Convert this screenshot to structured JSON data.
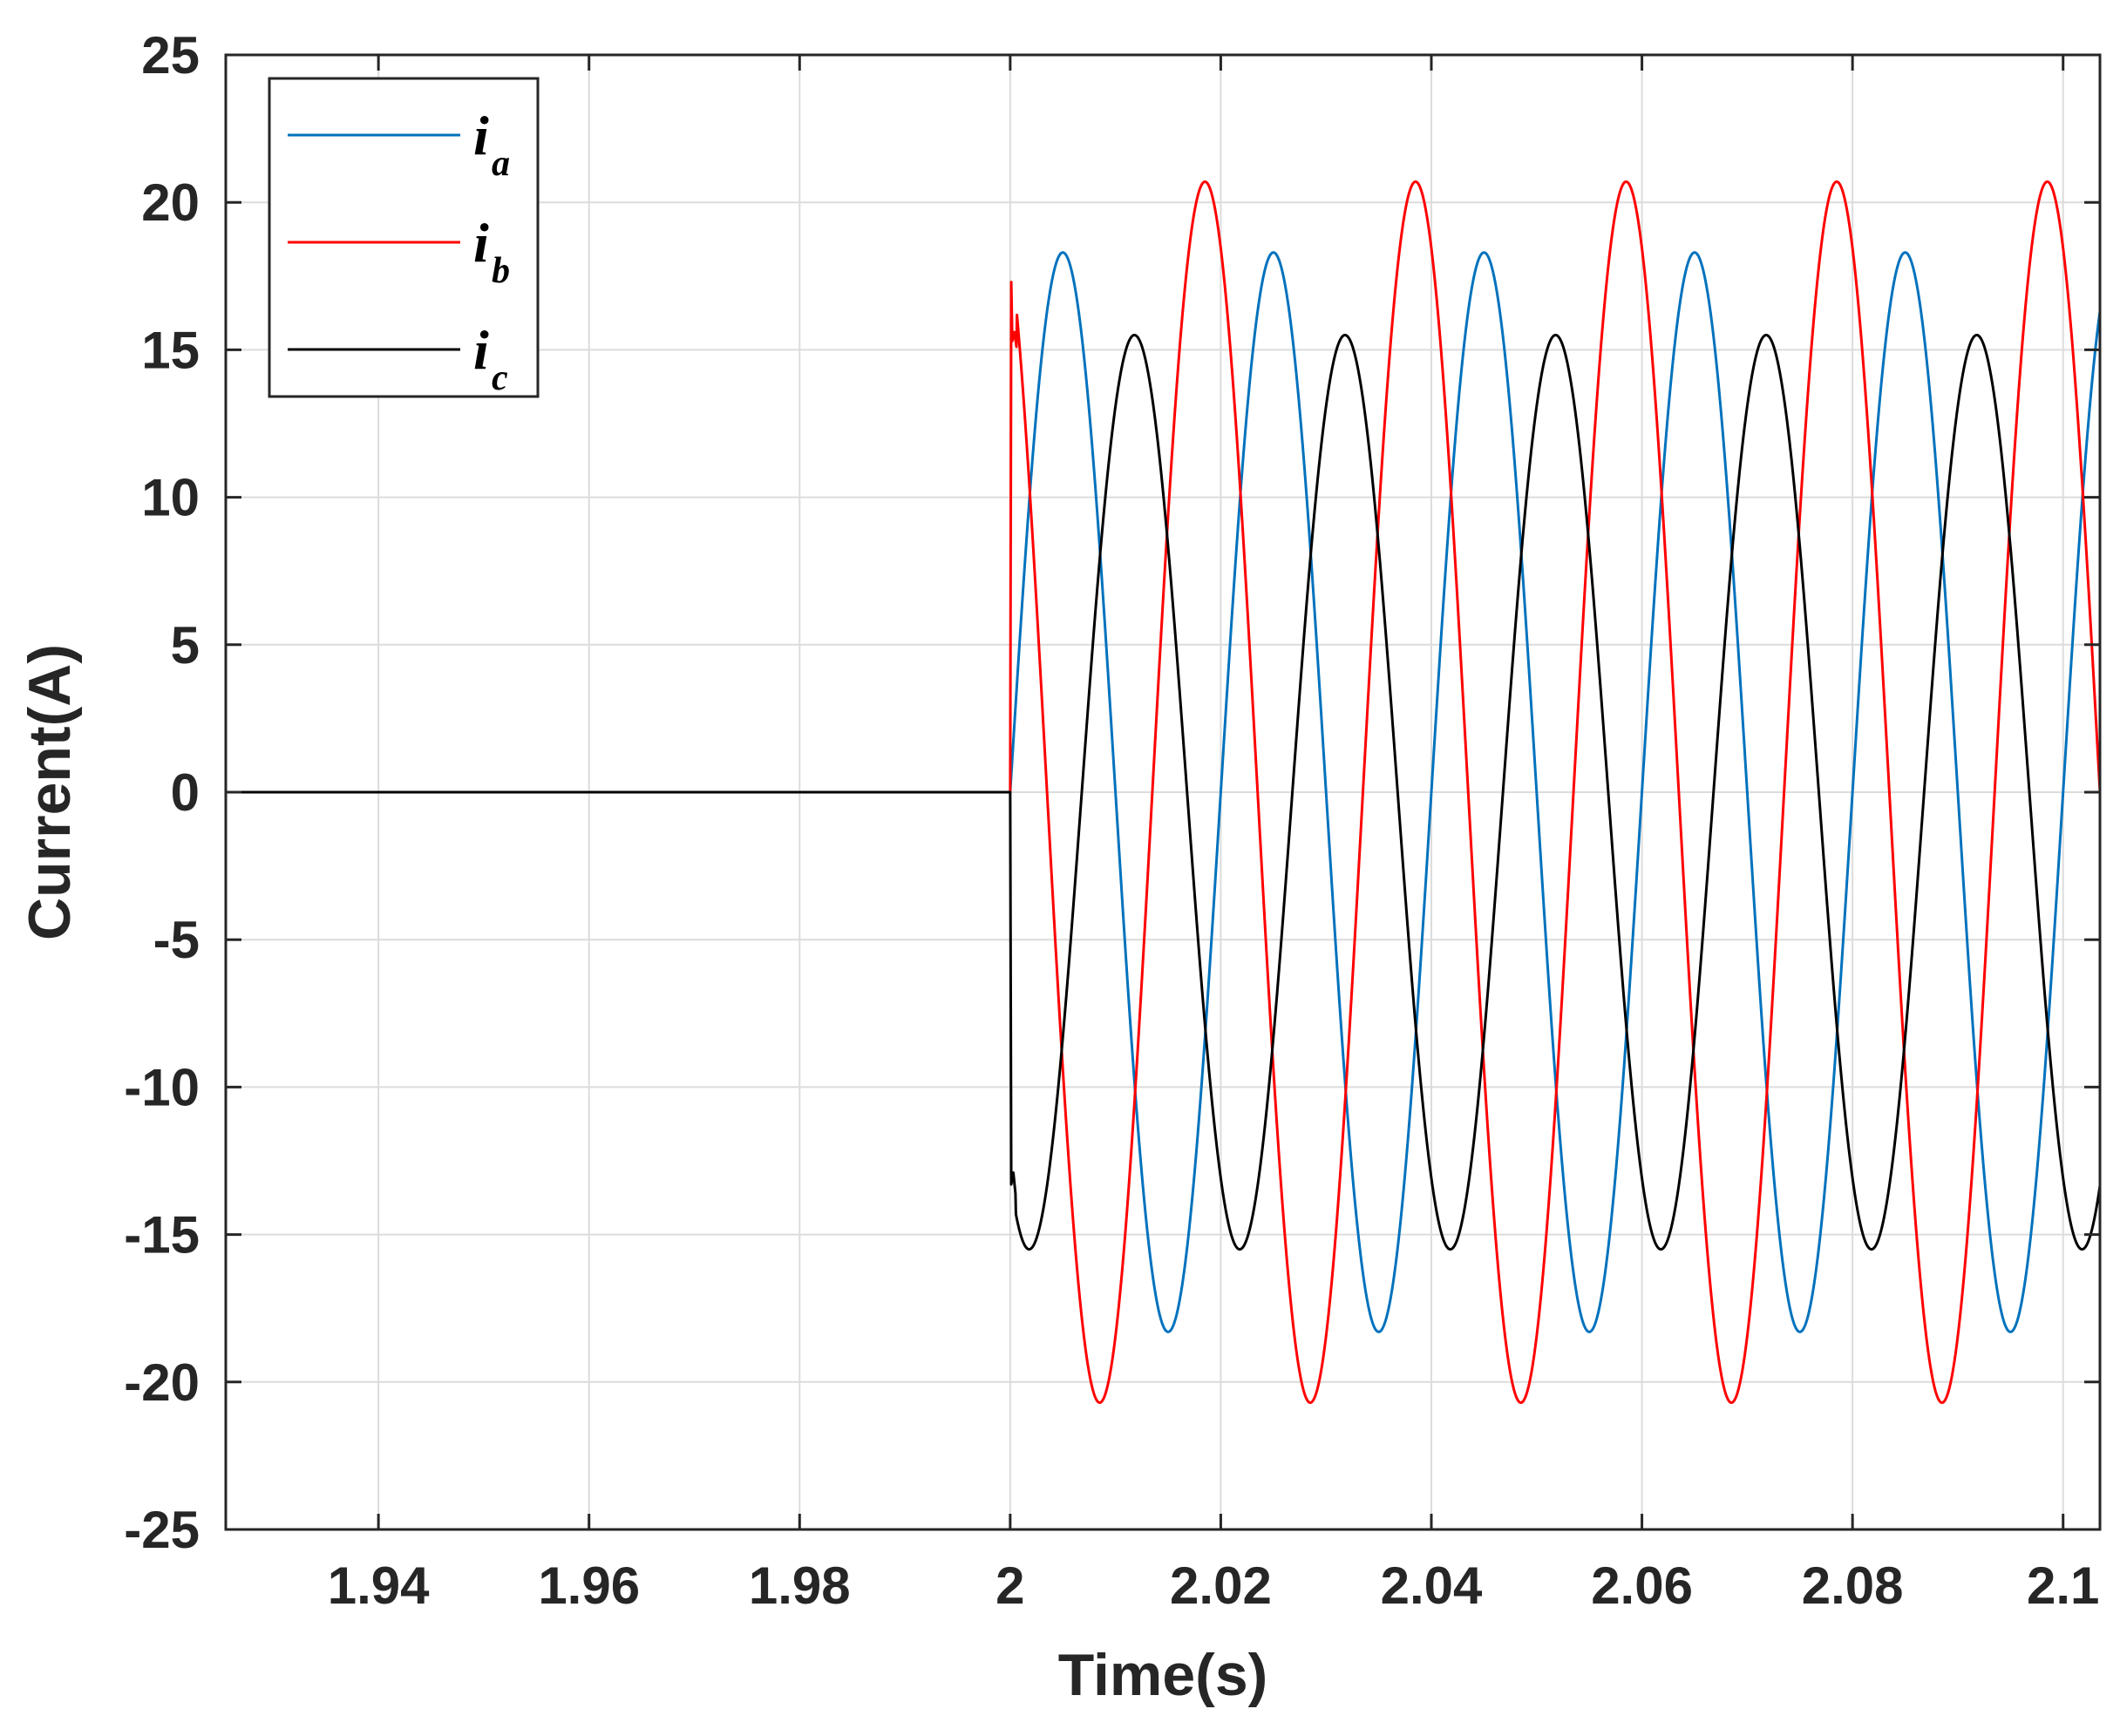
{
  "chart_data": {
    "type": "line",
    "title": "",
    "xlabel": "Time(s)",
    "ylabel": "Current(A)",
    "xlim": [
      1.9255,
      2.1035
    ],
    "ylim": [
      -25,
      25
    ],
    "xticks": [
      1.94,
      1.96,
      1.98,
      2.0,
      2.02,
      2.04,
      2.06,
      2.08,
      2.1
    ],
    "xtick_labels": [
      "1.94",
      "1.96",
      "1.98",
      "2",
      "2.02",
      "2.04",
      "2.06",
      "2.08",
      "2.1"
    ],
    "yticks": [
      -25,
      -20,
      -15,
      -10,
      -5,
      0,
      5,
      10,
      15,
      20,
      25
    ],
    "ytick_labels": [
      "-25",
      "-20",
      "-15",
      "-10",
      "-5",
      "0",
      "5",
      "10",
      "15",
      "20",
      "25"
    ],
    "grid": true,
    "legend_position": "top-left",
    "series": [
      {
        "name": "i",
        "subscript": "a",
        "color": "#0072BD",
        "onset": 2.0,
        "frequency_hz": 50,
        "amplitude": 18.3,
        "peak_time": 2.005,
        "offset": 0,
        "transient": [
          [
            2.0,
            0
          ]
        ]
      },
      {
        "name": "i",
        "subscript": "b",
        "color": "#FF0000",
        "onset": 2.0,
        "frequency_hz": 50,
        "amplitude": 20.7,
        "peak_time": 2.0185,
        "offset": 0,
        "transient": [
          [
            2.0,
            0
          ],
          [
            2.0001,
            17.3
          ],
          [
            2.0002,
            15.3
          ],
          [
            2.0004,
            15.6
          ],
          [
            2.0006,
            15.1
          ]
        ]
      },
      {
        "name": "i",
        "subscript": "c",
        "color": "#000000",
        "onset": 2.0,
        "frequency_hz": 50,
        "amplitude": 15.5,
        "peak_time": 2.0118,
        "offset": 0,
        "transient": [
          [
            2.0,
            0
          ],
          [
            2.0001,
            -13.3
          ],
          [
            2.0003,
            -12.9
          ],
          [
            2.0005,
            -13.6
          ]
        ]
      }
    ]
  }
}
